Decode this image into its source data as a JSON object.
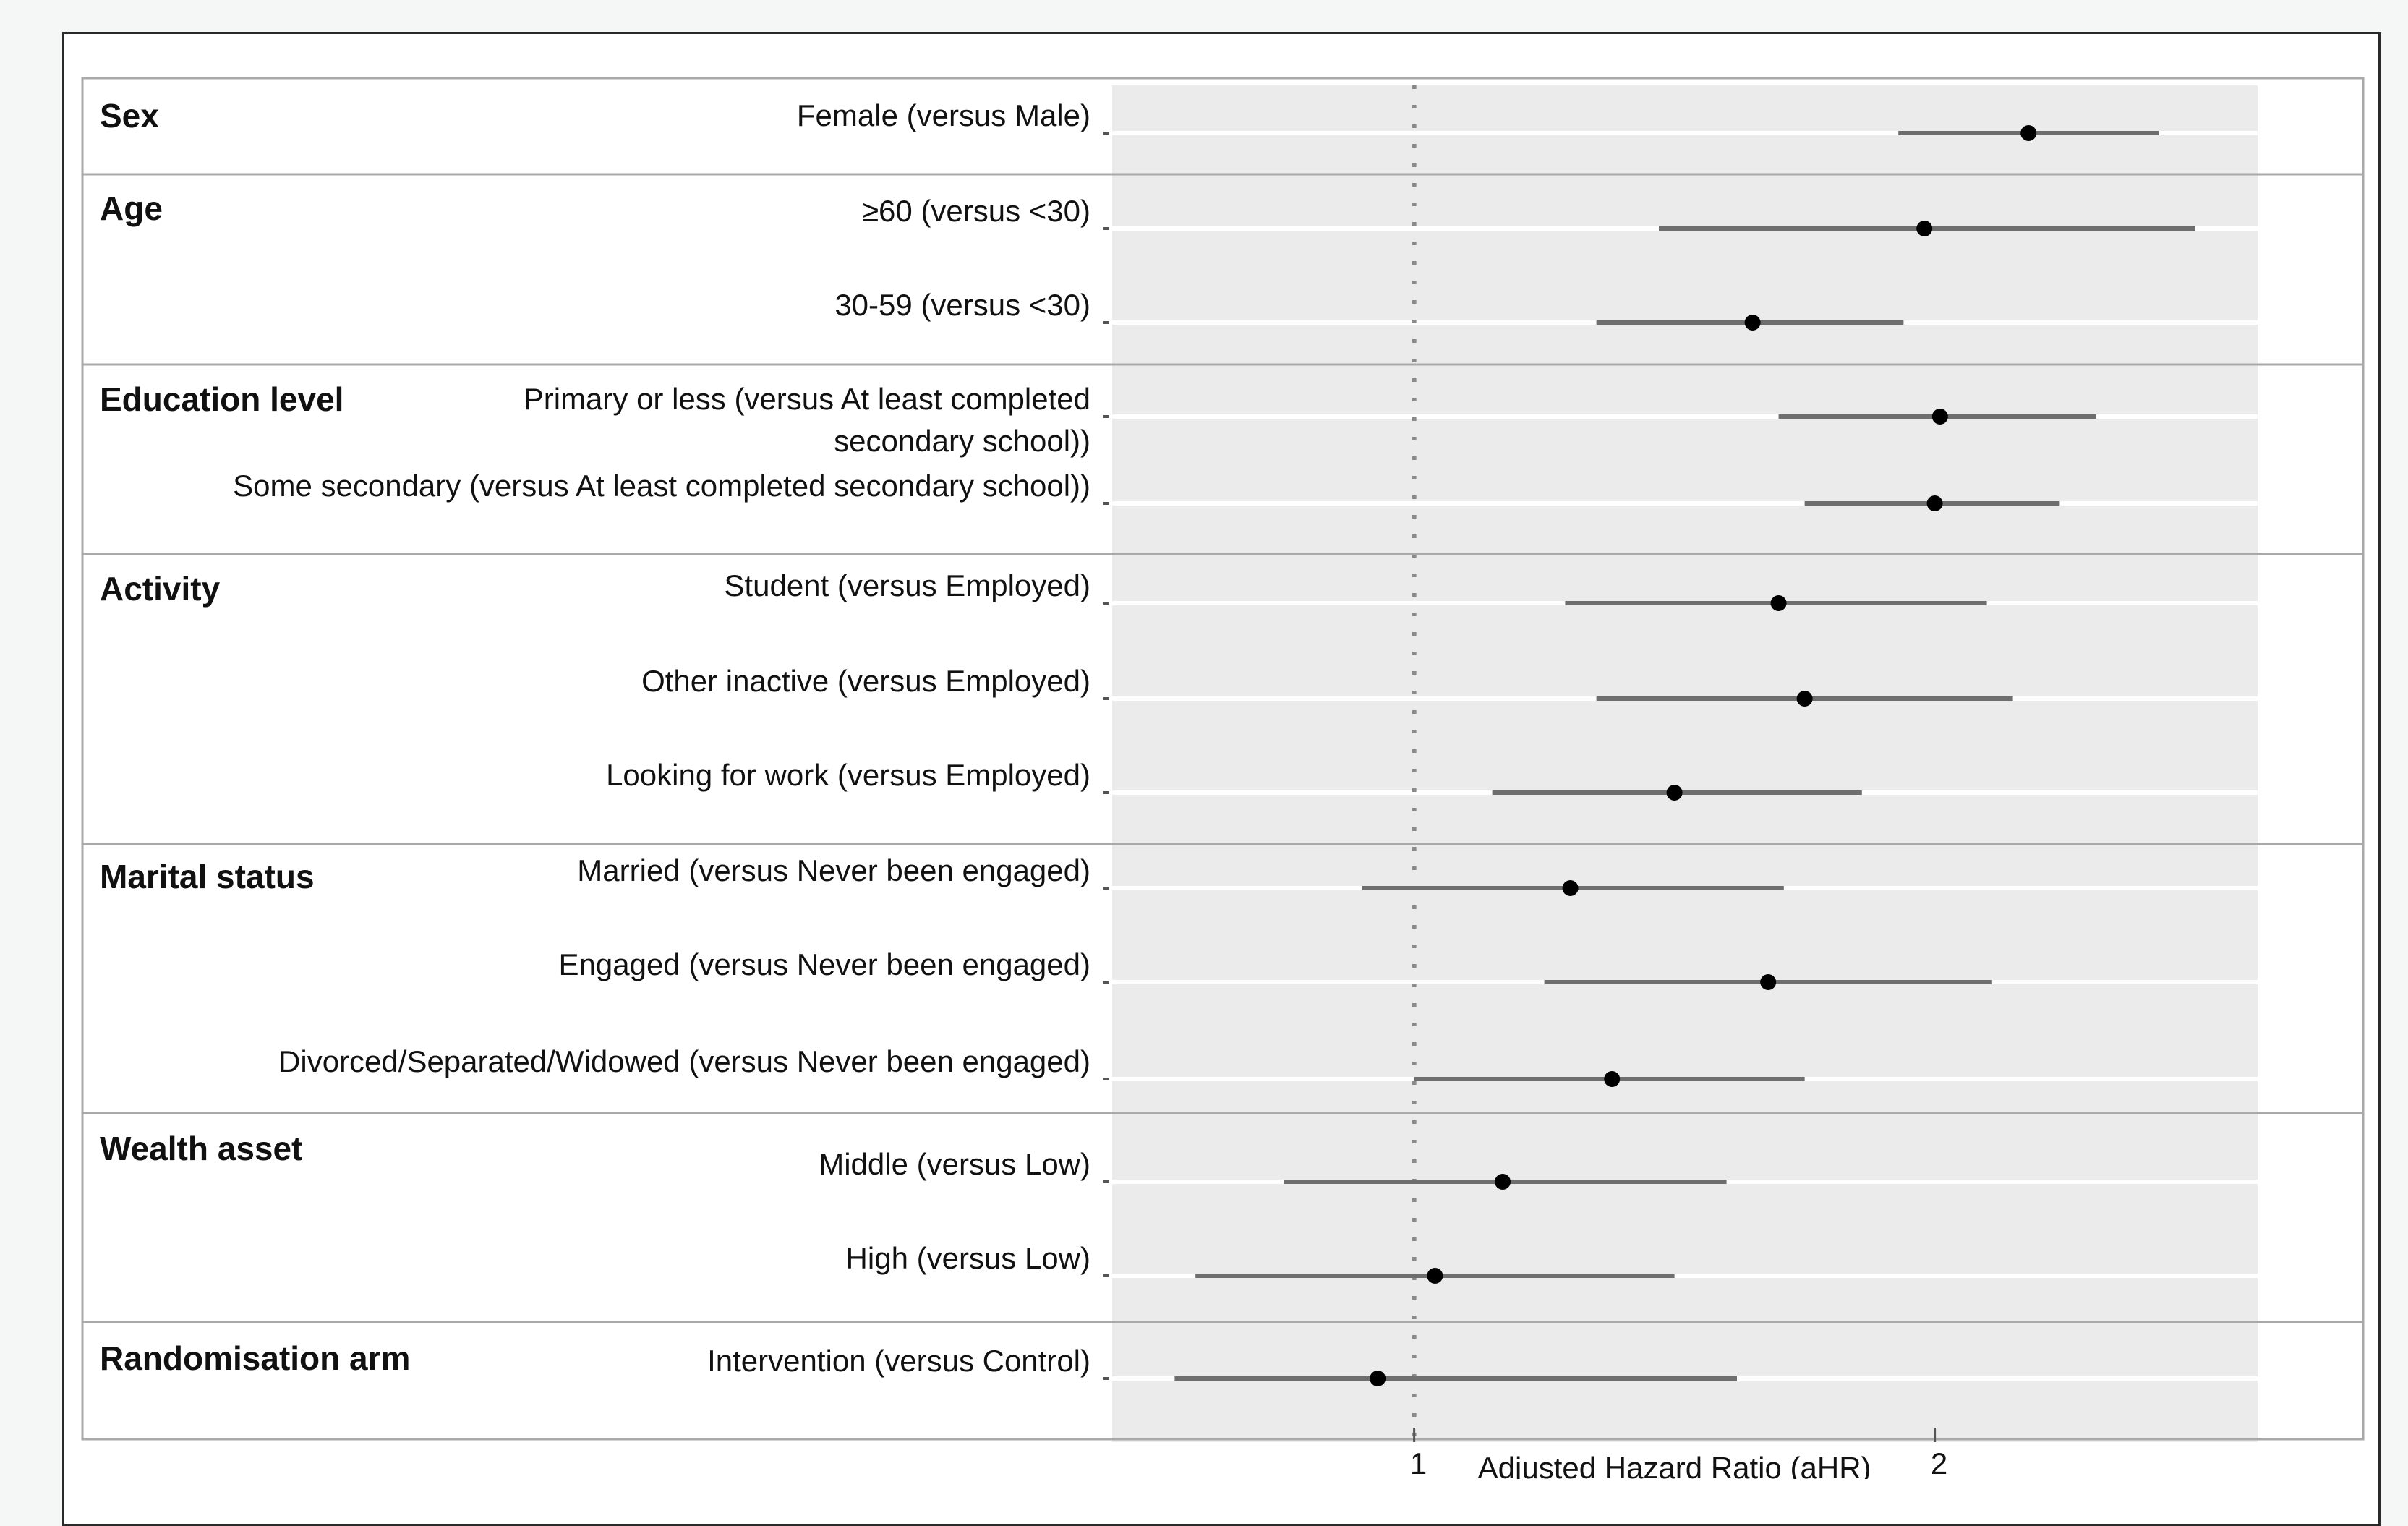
{
  "chart_data": {
    "type": "forest",
    "xlabel": "Adjusted Hazard Ratio (aHR)",
    "x_ticks": [
      1,
      2
    ],
    "xlim": [
      0.42,
      2.62
    ],
    "reference_line": 1,
    "groups": [
      {
        "title": "Sex",
        "rows": [
          {
            "label": "Female (versus Male)",
            "estimate": 2.18,
            "ci": [
              1.93,
              2.43
            ]
          }
        ]
      },
      {
        "title": "Age",
        "rows": [
          {
            "label": "≥60 (versus <30)",
            "estimate": 1.98,
            "ci": [
              1.47,
              2.5
            ]
          },
          {
            "label": "30-59 (versus <30)",
            "estimate": 1.65,
            "ci": [
              1.35,
              1.94
            ]
          }
        ]
      },
      {
        "title": "Education level",
        "rows": [
          {
            "label_lines": [
              "Primary or less (versus At least completed",
              "secondary school))"
            ],
            "estimate": 2.01,
            "ci": [
              1.7,
              2.31
            ]
          },
          {
            "label": "Some secondary (versus At least completed secondary school))",
            "estimate": 2.0,
            "ci": [
              1.75,
              2.24
            ]
          }
        ]
      },
      {
        "title": "Activity",
        "rows": [
          {
            "label": "Student (versus Employed)",
            "estimate": 1.7,
            "ci": [
              1.29,
              2.1
            ]
          },
          {
            "label": "Other inactive (versus Employed)",
            "estimate": 1.75,
            "ci": [
              1.35,
              2.15
            ]
          },
          {
            "label": "Looking for work (versus Employed)",
            "estimate": 1.5,
            "ci": [
              1.15,
              1.86
            ]
          }
        ]
      },
      {
        "title": "Marital status",
        "rows": [
          {
            "label": "Married (versus Never been engaged)",
            "estimate": 1.3,
            "ci": [
              0.9,
              1.71
            ]
          },
          {
            "label": "Engaged (versus Never been engaged)",
            "estimate": 1.68,
            "ci": [
              1.25,
              2.11
            ]
          },
          {
            "label": "Divorced/Separated/Widowed (versus Never been engaged)",
            "estimate": 1.38,
            "ci": [
              1.0,
              1.75
            ]
          }
        ]
      },
      {
        "title": "Wealth asset",
        "rows": [
          {
            "label": "Middle (versus Low)",
            "estimate": 1.17,
            "ci": [
              0.75,
              1.6
            ]
          },
          {
            "label": "High (versus Low)",
            "estimate": 1.04,
            "ci": [
              0.58,
              1.5
            ]
          }
        ]
      },
      {
        "title": "Randomisation arm",
        "rows": [
          {
            "label": "Intervention (versus Control)",
            "estimate": 0.93,
            "ci": [
              0.54,
              1.62
            ]
          }
        ]
      }
    ]
  }
}
